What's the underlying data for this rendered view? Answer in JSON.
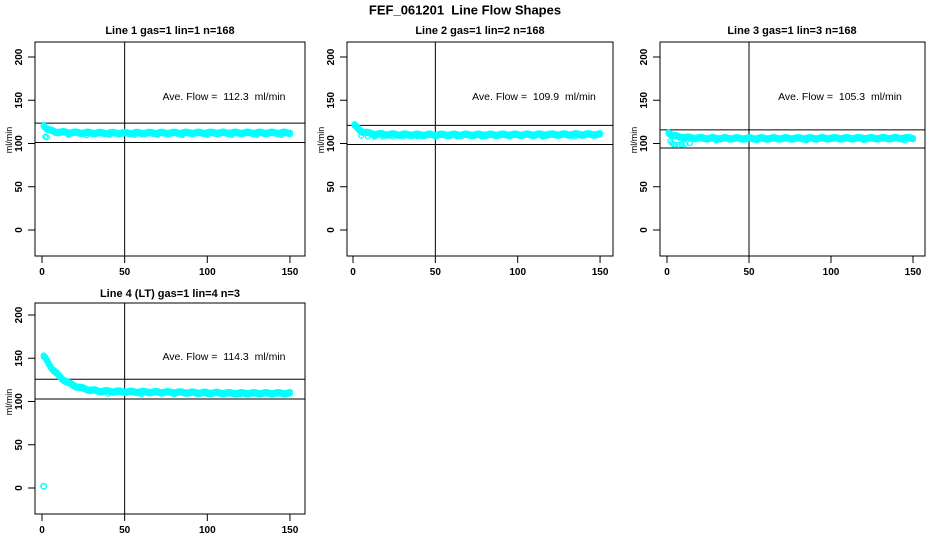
{
  "figure": {
    "title": "FEF_061201  Line Flow Shapes",
    "background_color": "#ffffff",
    "marker_color": "#00ffff",
    "axis_color": "#000000",
    "marker_shape": "open-circle"
  },
  "chart_data": [
    {
      "type": "scatter",
      "title": "Line 1 gas=1 lin=1 n=168",
      "annotation": "Ave. Flow =  112.3  ml/min",
      "ave_flow": 112.3,
      "gas": 1,
      "lin": 1,
      "n": 168,
      "ylabel": "ml/min",
      "xticks": [
        0,
        50,
        100,
        150
      ],
      "yticks": [
        0,
        50,
        100,
        150,
        200
      ],
      "xlim": [
        -4,
        159
      ],
      "ylim": [
        -30,
        215
      ],
      "vline_x": 50,
      "ref_lines_y": [
        123.5,
        101.1
      ],
      "legend": "none",
      "grid": false,
      "series_keypoints": [
        [
          1,
          121
        ],
        [
          2,
          119
        ],
        [
          3,
          117
        ],
        [
          5,
          115
        ],
        [
          8,
          113.5
        ],
        [
          12,
          113
        ],
        [
          20,
          112.5
        ],
        [
          40,
          112
        ],
        [
          100,
          112.3
        ],
        [
          150,
          112.3
        ]
      ],
      "extra_points": [
        [
          2,
          108
        ],
        [
          3,
          107
        ],
        [
          16,
          109.8
        ],
        [
          27,
          109.5
        ],
        [
          41,
          110
        ],
        [
          56,
          109.8
        ],
        [
          70,
          110
        ],
        [
          85,
          109.8
        ],
        [
          100,
          110
        ],
        [
          115,
          109.8
        ],
        [
          130,
          110
        ],
        [
          145,
          109.8
        ]
      ],
      "outlier_points": []
    },
    {
      "type": "scatter",
      "title": "Line 2 gas=1 lin=2 n=168",
      "annotation": "Ave. Flow =  109.9  ml/min",
      "ave_flow": 109.9,
      "gas": 1,
      "lin": 2,
      "n": 168,
      "ylabel": "ml/min",
      "xticks": [
        0,
        50,
        100,
        150
      ],
      "yticks": [
        0,
        50,
        100,
        150,
        200
      ],
      "xlim": [
        -4,
        159
      ],
      "ylim": [
        -30,
        215
      ],
      "vline_x": 50,
      "ref_lines_y": [
        120.9,
        98.9
      ],
      "legend": "none",
      "grid": false,
      "series_keypoints": [
        [
          1,
          121
        ],
        [
          2,
          119
        ],
        [
          3,
          117
        ],
        [
          4,
          115.5
        ],
        [
          6,
          113.5
        ],
        [
          9,
          112
        ],
        [
          13,
          111
        ],
        [
          20,
          110.5
        ],
        [
          40,
          110
        ],
        [
          80,
          110
        ],
        [
          120,
          110.3
        ],
        [
          150,
          110.5
        ]
      ],
      "extra_points": [
        [
          5,
          109
        ],
        [
          9,
          108
        ],
        [
          13,
          107.8
        ],
        [
          18,
          108
        ],
        [
          24,
          108
        ],
        [
          31,
          108
        ],
        [
          39,
          108.2
        ],
        [
          50,
          108
        ],
        [
          63,
          108.2
        ],
        [
          78,
          108
        ],
        [
          95,
          108.2
        ],
        [
          115,
          108
        ],
        [
          135,
          108.2
        ]
      ],
      "outlier_points": []
    },
    {
      "type": "scatter",
      "title": "Line 3 gas=1 lin=3 n=168",
      "annotation": "Ave. Flow =  105.3  ml/min",
      "ave_flow": 105.3,
      "gas": 1,
      "lin": 3,
      "n": 168,
      "ylabel": "ml/min",
      "xticks": [
        0,
        50,
        100,
        150
      ],
      "yticks": [
        0,
        50,
        100,
        150,
        200
      ],
      "xlim": [
        -4,
        159
      ],
      "ylim": [
        -30,
        215
      ],
      "vline_x": 50,
      "ref_lines_y": [
        115.8,
        94.8
      ],
      "legend": "none",
      "grid": false,
      "series_keypoints": [
        [
          1,
          112.5
        ],
        [
          2,
          111.5
        ],
        [
          3,
          110
        ],
        [
          5,
          108.5
        ],
        [
          8,
          107.5
        ],
        [
          14,
          106.5
        ],
        [
          25,
          106
        ],
        [
          50,
          105.8
        ],
        [
          100,
          106
        ],
        [
          150,
          106.2
        ]
      ],
      "extra_points": [
        [
          2,
          103
        ],
        [
          3,
          100.5
        ],
        [
          4,
          99
        ],
        [
          5,
          98.5
        ],
        [
          7,
          98.5
        ],
        [
          9,
          99
        ],
        [
          11,
          99.5
        ],
        [
          14,
          100.5
        ],
        [
          30,
          103.5
        ],
        [
          55,
          103.8
        ],
        [
          85,
          103.5
        ],
        [
          120,
          103.8
        ],
        [
          145,
          103.5
        ]
      ],
      "outlier_points": []
    },
    {
      "type": "scatter",
      "title": "Line 4 (LT) gas=1 lin=4 n=3",
      "annotation": "Ave. Flow =  114.3  ml/min",
      "ave_flow": 114.3,
      "gas": 1,
      "lin": 4,
      "n": 3,
      "ylabel": "ml/min",
      "xticks": [
        0,
        50,
        100,
        150
      ],
      "yticks": [
        0,
        50,
        100,
        150,
        200
      ],
      "xlim": [
        -4,
        159
      ],
      "ylim": [
        -30,
        215
      ],
      "vline_x": 50,
      "ref_lines_y": [
        125.7,
        102.9
      ],
      "legend": "none",
      "grid": false,
      "series_keypoints": [
        [
          1,
          152
        ],
        [
          2,
          150
        ],
        [
          3,
          147
        ],
        [
          4,
          144
        ],
        [
          5,
          141
        ],
        [
          6,
          138.5
        ],
        [
          7,
          136
        ],
        [
          8,
          134
        ],
        [
          9,
          132
        ],
        [
          10,
          130
        ],
        [
          12,
          126.5
        ],
        [
          14,
          124
        ],
        [
          16,
          121.5
        ],
        [
          18,
          119.5
        ],
        [
          20,
          118
        ],
        [
          23,
          116
        ],
        [
          26,
          114.5
        ],
        [
          30,
          113
        ],
        [
          35,
          112
        ],
        [
          45,
          111.5
        ],
        [
          60,
          111
        ],
        [
          80,
          110.5
        ],
        [
          100,
          110
        ],
        [
          120,
          109.5
        ],
        [
          150,
          109.5
        ]
      ],
      "extra_points": [
        [
          40,
          108.8
        ],
        [
          60,
          108.5
        ],
        [
          80,
          108.3
        ],
        [
          100,
          108.5
        ],
        [
          120,
          108.2
        ],
        [
          140,
          108.4
        ]
      ],
      "outlier_points": [
        [
          1,
          2
        ]
      ]
    }
  ]
}
